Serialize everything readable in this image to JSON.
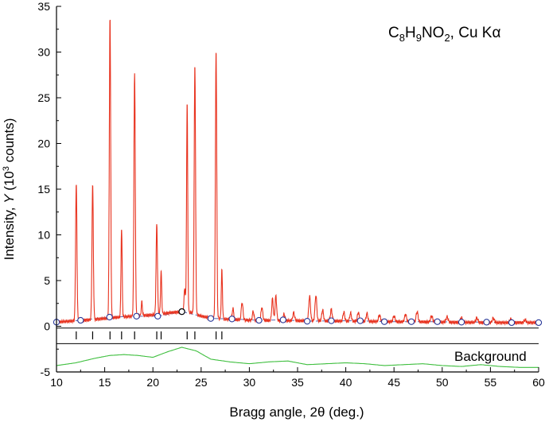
{
  "chart_data": {
    "type": "line",
    "title_parts": [
      "C",
      "8",
      "H",
      "9",
      "NO",
      "2",
      ", Cu K",
      "α"
    ],
    "xlabel_parts": [
      "Bragg angle, 2",
      "θ",
      " (deg.)"
    ],
    "ylabel_parts": [
      "Intensity, ",
      "Y",
      " (10",
      "3",
      " counts)"
    ],
    "xlim": [
      10,
      60
    ],
    "ylim": [
      -5,
      35
    ],
    "x_ticks": [
      10,
      15,
      20,
      25,
      30,
      35,
      40,
      45,
      50,
      55,
      60
    ],
    "x_tick_labels": [
      "10",
      "15",
      "20",
      "25",
      "30",
      "35",
      "40",
      "45",
      "50",
      "55",
      "60"
    ],
    "y_ticks": [
      -5,
      0,
      5,
      10,
      15,
      20,
      25,
      30,
      35
    ],
    "y_tick_labels": [
      "-5",
      "0",
      "5",
      "10",
      "15",
      "20",
      "25",
      "30",
      "35"
    ],
    "background_label": "Background",
    "colors": {
      "observed": "#e8321e",
      "background": "#3fbf3f",
      "fit_line": "#5a66b0",
      "marker_fill": "#ffffff",
      "marker_stroke": "#2a3a9a",
      "axis": "#000000"
    },
    "series": [
      {
        "role": "observed",
        "baseline": [
          [
            10,
            0.45
          ],
          [
            12,
            0.6
          ],
          [
            14,
            0.75
          ],
          [
            16,
            0.95
          ],
          [
            18,
            1.1
          ],
          [
            20,
            1.25
          ],
          [
            22,
            1.5
          ],
          [
            23,
            1.6
          ],
          [
            24,
            1.5
          ],
          [
            25,
            1.1
          ],
          [
            26,
            0.9
          ],
          [
            28,
            0.75
          ],
          [
            30,
            0.65
          ],
          [
            35,
            0.6
          ],
          [
            40,
            0.55
          ],
          [
            45,
            0.5
          ],
          [
            50,
            0.45
          ],
          [
            55,
            0.4
          ],
          [
            60,
            0.4
          ]
        ],
        "peaks": [
          [
            12.05,
            14.9,
            0.07
          ],
          [
            13.75,
            14.7,
            0.07
          ],
          [
            15.55,
            33.0,
            0.07
          ],
          [
            16.75,
            9.7,
            0.06
          ],
          [
            18.1,
            26.6,
            0.07
          ],
          [
            18.85,
            1.5,
            0.06
          ],
          [
            20.4,
            9.9,
            0.07
          ],
          [
            20.85,
            4.6,
            0.06
          ],
          [
            23.3,
            2.6,
            0.07
          ],
          [
            23.55,
            23.0,
            0.06
          ],
          [
            24.35,
            27.3,
            0.07
          ],
          [
            26.55,
            29.4,
            0.07
          ],
          [
            27.15,
            5.3,
            0.06
          ],
          [
            28.3,
            1.2,
            0.08
          ],
          [
            29.25,
            1.9,
            0.09
          ],
          [
            30.4,
            1.0,
            0.08
          ],
          [
            31.3,
            1.4,
            0.09
          ],
          [
            32.4,
            2.4,
            0.08
          ],
          [
            32.75,
            2.7,
            0.08
          ],
          [
            33.6,
            0.7,
            0.09
          ],
          [
            34.6,
            0.9,
            0.09
          ],
          [
            36.25,
            2.7,
            0.09
          ],
          [
            36.9,
            2.8,
            0.09
          ],
          [
            37.6,
            1.2,
            0.09
          ],
          [
            38.5,
            1.3,
            0.09
          ],
          [
            39.8,
            1.0,
            0.09
          ],
          [
            40.5,
            0.9,
            0.09
          ],
          [
            41.3,
            1.0,
            0.09
          ],
          [
            42.2,
            0.9,
            0.09
          ],
          [
            43.5,
            0.7,
            0.1
          ],
          [
            45.0,
            0.6,
            0.1
          ],
          [
            46.2,
            0.8,
            0.1
          ],
          [
            47.4,
            1.1,
            0.1
          ],
          [
            48.9,
            0.7,
            0.1
          ],
          [
            50.5,
            0.6,
            0.1
          ],
          [
            52.0,
            0.5,
            0.1
          ],
          [
            53.6,
            0.5,
            0.1
          ],
          [
            55.3,
            0.5,
            0.1
          ],
          [
            57.1,
            0.4,
            0.1
          ],
          [
            58.6,
            0.3,
            0.1
          ]
        ]
      },
      {
        "role": "background_fit",
        "points": [
          [
            10,
            0.45
          ],
          [
            12.5,
            0.65
          ],
          [
            15.5,
            1.0
          ],
          [
            18.3,
            1.1
          ],
          [
            20.5,
            1.1
          ],
          [
            23.0,
            1.6
          ],
          [
            26.0,
            0.85
          ],
          [
            28.2,
            0.8
          ],
          [
            31.0,
            0.65
          ],
          [
            33.5,
            0.7
          ],
          [
            36.0,
            0.55
          ],
          [
            38.5,
            0.6
          ],
          [
            41.5,
            0.6
          ],
          [
            44.0,
            0.5
          ],
          [
            46.8,
            0.5
          ],
          [
            49.5,
            0.5
          ],
          [
            52.0,
            0.45
          ],
          [
            54.6,
            0.45
          ],
          [
            57.2,
            0.4
          ],
          [
            60.0,
            0.4
          ]
        ],
        "highlighted": [
          23.0,
          1.6
        ]
      },
      {
        "role": "background",
        "points": [
          [
            10,
            -4.3
          ],
          [
            12,
            -4.0
          ],
          [
            14,
            -3.5
          ],
          [
            15.5,
            -3.2
          ],
          [
            17,
            -3.1
          ],
          [
            18.5,
            -3.2
          ],
          [
            20,
            -3.4
          ],
          [
            21.5,
            -2.8
          ],
          [
            23,
            -2.3
          ],
          [
            24.5,
            -2.7
          ],
          [
            26,
            -3.6
          ],
          [
            28,
            -3.9
          ],
          [
            30,
            -4.1
          ],
          [
            32,
            -3.9
          ],
          [
            34,
            -3.8
          ],
          [
            36,
            -4.2
          ],
          [
            38,
            -4.1
          ],
          [
            40,
            -4.0
          ],
          [
            42,
            -4.1
          ],
          [
            44,
            -4.3
          ],
          [
            46,
            -4.2
          ],
          [
            48,
            -4.1
          ],
          [
            50,
            -4.3
          ],
          [
            52,
            -4.4
          ],
          [
            54,
            -4.2
          ],
          [
            56,
            -4.4
          ],
          [
            58,
            -4.5
          ],
          [
            60,
            -4.5
          ]
        ]
      }
    ],
    "reflection_ticks": [
      12.05,
      13.75,
      15.55,
      16.75,
      18.1,
      20.4,
      20.85,
      23.55,
      24.35,
      26.55,
      27.15
    ],
    "reflection_row_y": -1.0,
    "separator_y": [
      -0.2,
      -1.9
    ]
  }
}
